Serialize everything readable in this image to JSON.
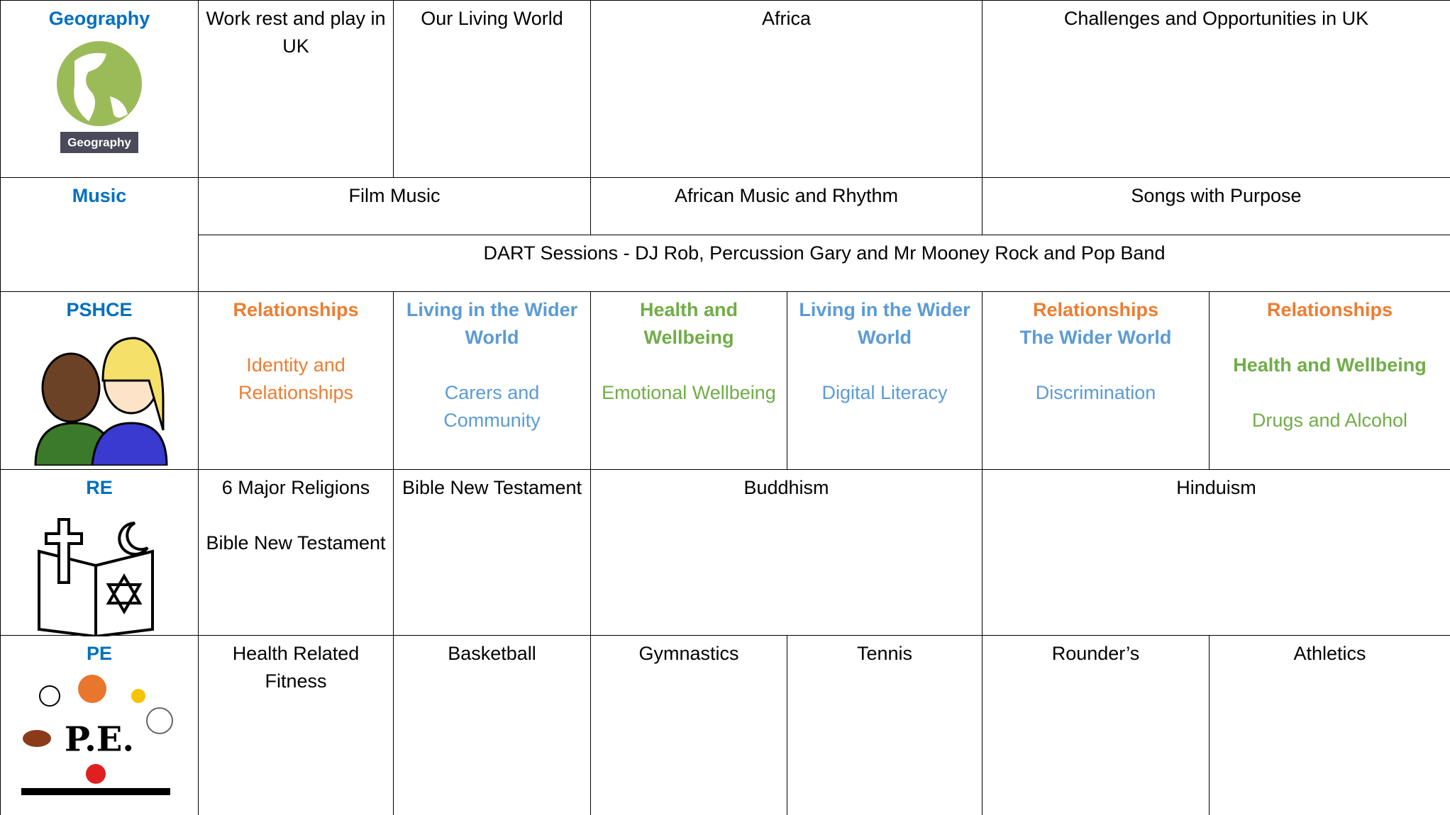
{
  "rows": [
    {
      "subject": "Geography",
      "icon_label": "Geography",
      "cells": [
        {
          "text": "Work rest and play in UK"
        },
        {
          "text": "Our Living World"
        },
        {
          "text": "Africa"
        },
        {
          "text": "Challenges and Opportunities in UK"
        }
      ]
    },
    {
      "subject": "Music",
      "cells": [
        {
          "text": "Film Music"
        },
        {
          "text": "African Music and Rhythm"
        },
        {
          "text": "Songs with Purpose"
        },
        {
          "text": "DART Sessions - DJ Rob, Percussion Gary and Mr Mooney Rock and Pop Band"
        }
      ]
    },
    {
      "subject": "PSHCE",
      "cells": [
        {
          "paragraphs": [
            [
              {
                "text": "Relationships",
                "color": "#ed7d31",
                "bold": true
              }
            ],
            [
              {
                "text": "Identity and Relationships",
                "color": "#ed7d31",
                "bold": false
              }
            ]
          ]
        },
        {
          "paragraphs": [
            [
              {
                "text": "Living in the Wider World",
                "color": "#5b9bd5",
                "bold": true
              }
            ],
            [
              {
                "text": "Carers and Community",
                "color": "#5b9bd5",
                "bold": false
              }
            ]
          ]
        },
        {
          "paragraphs": [
            [
              {
                "text": "Health and Wellbeing",
                "color": "#70ad47",
                "bold": true
              }
            ],
            [
              {
                "text": "Emotional Wellbeing",
                "color": "#70ad47",
                "bold": false
              }
            ]
          ]
        },
        {
          "paragraphs": [
            [
              {
                "text": "Living in the Wider World",
                "color": "#5b9bd5",
                "bold": true
              }
            ],
            [
              {
                "text": "Digital Literacy",
                "color": "#5b9bd5",
                "bold": false
              }
            ]
          ]
        },
        {
          "paragraphs": [
            [
              {
                "text": "Relationships",
                "color": "#ed7d31",
                "bold": true
              },
              {
                "text": "The Wider World",
                "color": "#5b9bd5",
                "bold": true
              }
            ],
            [
              {
                "text": "Discrimination",
                "color": "#5b9bd5",
                "bold": false
              }
            ]
          ]
        },
        {
          "paragraphs": [
            [
              {
                "text": "Relationships",
                "color": "#ed7d31",
                "bold": true
              }
            ],
            [
              {
                "text": "Health and Wellbeing",
                "color": "#70ad47",
                "bold": true
              }
            ],
            [
              {
                "text": "Drugs and Alcohol",
                "color": "#70ad47",
                "bold": false
              }
            ]
          ]
        }
      ]
    },
    {
      "subject": "RE",
      "cells": [
        {
          "paragraphs": [
            [
              {
                "text": "6 Major Religions",
                "color": "#000000",
                "bold": false
              }
            ],
            [
              {
                "text": "Bible New Testament",
                "color": "#000000",
                "bold": false
              }
            ]
          ]
        },
        {
          "text": "Bible New Testament"
        },
        {
          "text": "Buddhism"
        },
        {
          "text": "Hinduism"
        }
      ]
    },
    {
      "subject": "PE",
      "icon_label": "P.E.",
      "cells": [
        {
          "text": "Health Related Fitness"
        },
        {
          "text": "Basketball"
        },
        {
          "text": "Gymnastics"
        },
        {
          "text": "Tennis"
        },
        {
          "text": "Rounder’s"
        },
        {
          "text": "Athletics"
        }
      ]
    }
  ]
}
